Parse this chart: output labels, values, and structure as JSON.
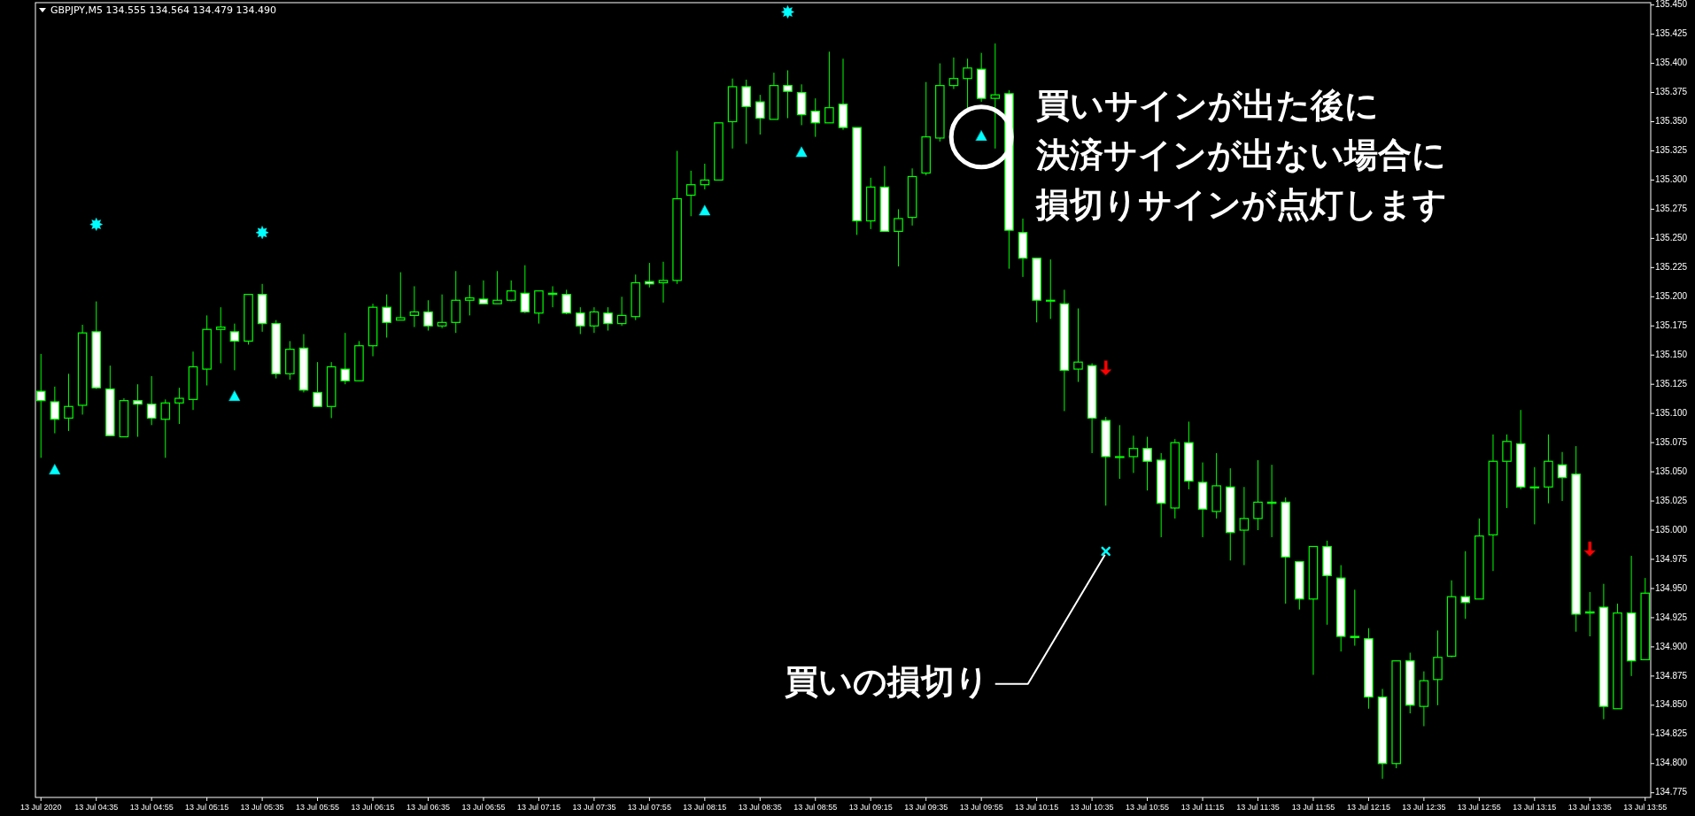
{
  "chart_data": {
    "type": "candlestick",
    "title": "GBPJPY,M5  134.555 134.564 134.479 134.490",
    "x": [
      "2020-07-13T04:15",
      "2020-07-13T04:20",
      "2020-07-13T04:25",
      "2020-07-13T04:30",
      "2020-07-13T04:35",
      "2020-07-13T04:40",
      "2020-07-13T04:45",
      "2020-07-13T04:50",
      "2020-07-13T04:55",
      "2020-07-13T05:00",
      "2020-07-13T05:05",
      "2020-07-13T05:10",
      "2020-07-13T05:15",
      "2020-07-13T05:20",
      "2020-07-13T05:25",
      "2020-07-13T05:30",
      "2020-07-13T05:35",
      "2020-07-13T05:40",
      "2020-07-13T05:45",
      "2020-07-13T05:50",
      "2020-07-13T05:55",
      "2020-07-13T06:00",
      "2020-07-13T06:05",
      "2020-07-13T06:10",
      "2020-07-13T06:15",
      "2020-07-13T06:20",
      "2020-07-13T06:25",
      "2020-07-13T06:30",
      "2020-07-13T06:35",
      "2020-07-13T06:40",
      "2020-07-13T06:45",
      "2020-07-13T06:50",
      "2020-07-13T06:55",
      "2020-07-13T07:00",
      "2020-07-13T07:05",
      "2020-07-13T07:10",
      "2020-07-13T07:15",
      "2020-07-13T07:20",
      "2020-07-13T07:25",
      "2020-07-13T07:30",
      "2020-07-13T07:35",
      "2020-07-13T07:40",
      "2020-07-13T07:45",
      "2020-07-13T07:50",
      "2020-07-13T07:55",
      "2020-07-13T08:00",
      "2020-07-13T08:05",
      "2020-07-13T08:10",
      "2020-07-13T08:15",
      "2020-07-13T08:20",
      "2020-07-13T08:25",
      "2020-07-13T08:30",
      "2020-07-13T08:35",
      "2020-07-13T08:40",
      "2020-07-13T08:45",
      "2020-07-13T08:50",
      "2020-07-13T08:55",
      "2020-07-13T09:00",
      "2020-07-13T09:05",
      "2020-07-13T09:10",
      "2020-07-13T09:15",
      "2020-07-13T09:20",
      "2020-07-13T09:25",
      "2020-07-13T09:30",
      "2020-07-13T09:35",
      "2020-07-13T09:40",
      "2020-07-13T09:45",
      "2020-07-13T09:50",
      "2020-07-13T09:55",
      "2020-07-13T10:00",
      "2020-07-13T10:05",
      "2020-07-13T10:10",
      "2020-07-13T10:15",
      "2020-07-13T10:20",
      "2020-07-13T10:25",
      "2020-07-13T10:30",
      "2020-07-13T10:35",
      "2020-07-13T10:40",
      "2020-07-13T10:45",
      "2020-07-13T10:50",
      "2020-07-13T10:55",
      "2020-07-13T11:00",
      "2020-07-13T11:05",
      "2020-07-13T11:10",
      "2020-07-13T11:15",
      "2020-07-13T11:20",
      "2020-07-13T11:25",
      "2020-07-13T11:30",
      "2020-07-13T11:35",
      "2020-07-13T11:40",
      "2020-07-13T11:45",
      "2020-07-13T11:50",
      "2020-07-13T11:55",
      "2020-07-13T12:00",
      "2020-07-13T12:05",
      "2020-07-13T12:10",
      "2020-07-13T12:15",
      "2020-07-13T12:20",
      "2020-07-13T12:25",
      "2020-07-13T12:30",
      "2020-07-13T12:35",
      "2020-07-13T12:40",
      "2020-07-13T12:45",
      "2020-07-13T12:50",
      "2020-07-13T12:55",
      "2020-07-13T13:00",
      "2020-07-13T13:05",
      "2020-07-13T13:10",
      "2020-07-13T13:15",
      "2020-07-13T13:20",
      "2020-07-13T13:25",
      "2020-07-13T13:30",
      "2020-07-13T13:35",
      "2020-07-13T13:40",
      "2020-07-13T13:45",
      "2020-07-13T13:50",
      "2020-07-13T13:55"
    ],
    "series": [
      {
        "type": "scatter",
        "color": "#00ffff",
        "marker": "triangle",
        "x": [
          "2020-07-13T04:20",
          "2020-07-13T05:25",
          "2020-07-13T08:15",
          "2020-07-13T08:50",
          "2020-07-13T09:55"
        ],
        "values": [
          135.051,
          135.114,
          135.273,
          135.323,
          135.337
        ]
      },
      {
        "type": "scatter",
        "color": "#00ffff",
        "marker": "star",
        "x": [
          "2020-07-13T04:35",
          "2020-07-13T05:35",
          "2020-07-13T08:45"
        ],
        "values": [
          135.262,
          135.255,
          135.444
        ]
      },
      {
        "type": "scatter",
        "color": "#00ffff",
        "marker": "cross",
        "x": [
          "2020-07-13T10:40"
        ],
        "values": [
          134.982
        ]
      },
      {
        "type": "scatter",
        "color": "#ff0000",
        "x": [
          "2020-07-13T10:40",
          "2020-07-13T13:35"
        ],
        "values": [
          135.139,
          134.984
        ]
      },
      {
        "color": "#00ff00",
        "ohlc": [
          [
            135.119,
            135.151,
            135.062,
            135.111
          ],
          [
            135.11,
            135.123,
            135.083,
            135.095
          ],
          [
            135.096,
            135.134,
            135.085,
            135.106
          ],
          [
            135.107,
            135.176,
            135.099,
            135.169
          ],
          [
            135.17,
            135.196,
            135.121,
            135.122
          ],
          [
            135.121,
            135.141,
            135.081,
            135.081
          ],
          [
            135.08,
            135.113,
            135.08,
            135.111
          ],
          [
            135.111,
            135.125,
            135.08,
            135.108
          ],
          [
            135.108,
            135.132,
            135.09,
            135.096
          ],
          [
            135.095,
            135.112,
            135.062,
            135.109
          ],
          [
            135.109,
            135.122,
            135.091,
            135.113
          ],
          [
            135.112,
            135.153,
            135.103,
            135.14
          ],
          [
            135.138,
            135.184,
            135.124,
            135.172
          ],
          [
            135.172,
            135.191,
            135.143,
            135.174
          ],
          [
            135.17,
            135.177,
            135.137,
            135.162
          ],
          [
            135.162,
            135.202,
            135.159,
            135.202
          ],
          [
            135.202,
            135.211,
            135.17,
            135.177
          ],
          [
            135.177,
            135.18,
            135.13,
            135.134
          ],
          [
            135.134,
            135.162,
            135.129,
            135.155
          ],
          [
            135.156,
            135.168,
            135.118,
            135.12
          ],
          [
            135.118,
            135.144,
            135.106,
            135.106
          ],
          [
            135.106,
            135.144,
            135.096,
            135.14
          ],
          [
            135.138,
            135.169,
            135.125,
            135.128
          ],
          [
            135.128,
            135.162,
            135.128,
            135.158
          ],
          [
            135.158,
            135.194,
            135.149,
            135.191
          ],
          [
            135.191,
            135.202,
            135.165,
            135.178
          ],
          [
            135.18,
            135.221,
            135.18,
            135.182
          ],
          [
            135.184,
            135.209,
            135.174,
            135.187
          ],
          [
            135.187,
            135.197,
            135.171,
            135.175
          ],
          [
            135.175,
            135.202,
            135.173,
            135.178
          ],
          [
            135.178,
            135.222,
            135.169,
            135.197
          ],
          [
            135.197,
            135.21,
            135.184,
            135.199
          ],
          [
            135.198,
            135.214,
            135.194,
            135.194
          ],
          [
            135.194,
            135.222,
            135.194,
            135.197
          ],
          [
            135.197,
            135.214,
            135.196,
            135.205
          ],
          [
            135.203,
            135.227,
            135.186,
            135.187
          ],
          [
            135.186,
            135.205,
            135.177,
            135.205
          ],
          [
            135.203,
            135.209,
            135.191,
            135.202
          ],
          [
            135.202,
            135.206,
            135.185,
            135.186
          ],
          [
            135.186,
            135.191,
            135.168,
            135.175
          ],
          [
            135.175,
            135.191,
            135.169,
            135.187
          ],
          [
            135.186,
            135.191,
            135.171,
            135.177
          ],
          [
            135.177,
            135.2,
            135.175,
            135.184
          ],
          [
            135.183,
            135.219,
            135.18,
            135.212
          ],
          [
            135.213,
            135.229,
            135.208,
            135.211
          ],
          [
            135.212,
            135.23,
            135.195,
            135.214
          ],
          [
            135.214,
            135.325,
            135.211,
            135.284
          ],
          [
            135.287,
            135.308,
            135.269,
            135.296
          ],
          [
            135.296,
            135.314,
            135.292,
            135.3
          ],
          [
            135.3,
            135.349,
            135.3,
            135.349
          ],
          [
            135.35,
            135.387,
            135.327,
            135.38
          ],
          [
            135.38,
            135.386,
            135.331,
            135.363
          ],
          [
            135.367,
            135.373,
            135.339,
            135.353
          ],
          [
            135.352,
            135.392,
            135.352,
            135.381
          ],
          [
            135.381,
            135.394,
            135.353,
            135.376
          ],
          [
            135.375,
            135.382,
            135.347,
            135.356
          ],
          [
            135.359,
            135.37,
            135.337,
            135.349
          ],
          [
            135.349,
            135.41,
            135.349,
            135.362
          ],
          [
            135.365,
            135.404,
            135.343,
            135.345
          ],
          [
            135.345,
            135.345,
            135.253,
            135.265
          ],
          [
            135.265,
            135.302,
            135.258,
            135.294
          ],
          [
            135.294,
            135.312,
            135.256,
            135.256
          ],
          [
            135.256,
            135.275,
            135.226,
            135.267
          ],
          [
            135.268,
            135.31,
            135.261,
            135.303
          ],
          [
            135.306,
            135.384,
            135.304,
            135.337
          ],
          [
            135.336,
            135.4,
            135.333,
            135.381
          ],
          [
            135.381,
            135.405,
            135.378,
            135.387
          ],
          [
            135.387,
            135.404,
            135.361,
            135.396
          ],
          [
            135.395,
            135.409,
            135.367,
            135.37
          ],
          [
            135.37,
            135.417,
            135.327,
            135.373
          ],
          [
            135.374,
            135.377,
            135.224,
            135.257
          ],
          [
            135.255,
            135.267,
            135.217,
            135.233
          ],
          [
            135.233,
            135.233,
            135.178,
            135.197
          ],
          [
            135.197,
            135.232,
            135.181,
            135.197
          ],
          [
            135.194,
            135.206,
            135.102,
            135.137
          ],
          [
            135.138,
            135.19,
            135.127,
            135.144
          ],
          [
            135.141,
            135.143,
            135.066,
            135.096
          ],
          [
            135.094,
            135.097,
            135.021,
            135.063
          ],
          [
            135.063,
            135.09,
            135.044,
            135.063
          ],
          [
            135.063,
            135.081,
            135.049,
            135.07
          ],
          [
            135.07,
            135.08,
            135.034,
            135.059
          ],
          [
            135.06,
            135.066,
            134.994,
            135.023
          ],
          [
            135.019,
            135.078,
            135.01,
            135.075
          ],
          [
            135.075,
            135.093,
            135.035,
            135.042
          ],
          [
            135.041,
            135.058,
            134.994,
            135.018
          ],
          [
            135.016,
            135.066,
            135.01,
            135.038
          ],
          [
            135.037,
            135.053,
            134.974,
            134.998
          ],
          [
            135.0,
            135.037,
            134.97,
            135.01
          ],
          [
            135.01,
            135.06,
            135.0,
            135.024
          ],
          [
            135.024,
            135.056,
            134.994,
            135.023
          ],
          [
            135.024,
            135.028,
            134.937,
            134.977
          ],
          [
            134.973,
            134.973,
            134.932,
            134.941
          ],
          [
            134.941,
            134.986,
            134.876,
            134.986
          ],
          [
            134.986,
            134.991,
            134.919,
            134.961
          ],
          [
            134.959,
            134.97,
            134.896,
            134.909
          ],
          [
            134.909,
            134.949,
            134.901,
            134.908
          ],
          [
            134.907,
            134.916,
            134.847,
            134.857
          ],
          [
            134.857,
            134.864,
            134.787,
            134.8
          ],
          [
            134.8,
            134.888,
            134.796,
            134.888
          ],
          [
            134.888,
            134.895,
            134.843,
            134.85
          ],
          [
            134.849,
            134.879,
            134.832,
            134.871
          ],
          [
            134.872,
            134.914,
            134.85,
            134.891
          ],
          [
            134.892,
            134.957,
            134.891,
            134.943
          ],
          [
            134.943,
            134.982,
            134.924,
            134.938
          ],
          [
            134.941,
            135.01,
            134.941,
            134.995
          ],
          [
            134.996,
            135.082,
            134.965,
            135.059
          ],
          [
            135.059,
            135.082,
            135.019,
            135.076
          ],
          [
            135.074,
            135.103,
            135.035,
            135.037
          ],
          [
            135.037,
            135.054,
            135.005,
            135.037
          ],
          [
            135.037,
            135.082,
            135.023,
            135.059
          ],
          [
            135.056,
            135.067,
            135.025,
            135.045
          ],
          [
            135.048,
            135.072,
            134.913,
            134.928
          ],
          [
            134.929,
            134.947,
            134.909,
            134.93
          ],
          [
            134.934,
            134.954,
            134.838,
            134.849
          ],
          [
            134.847,
            134.937,
            134.847,
            134.929
          ],
          [
            134.929,
            134.978,
            134.875,
            134.888
          ],
          [
            134.889,
            134.959,
            134.889,
            134.946
          ]
        ]
      }
    ],
    "xlim": [
      "2020-07-13T04:13",
      "2020-07-13T13:57"
    ],
    "xticks": [
      {
        "value": "2020-07-13T04:15",
        "label": "13 Jul 2020"
      },
      {
        "value": "2020-07-13T04:35",
        "label": "13 Jul 04:35"
      },
      {
        "value": "2020-07-13T04:55",
        "label": "13 Jul 04:55"
      },
      {
        "value": "2020-07-13T05:15",
        "label": "13 Jul 05:15"
      },
      {
        "value": "2020-07-13T05:35",
        "label": "13 Jul 05:35"
      },
      {
        "value": "2020-07-13T05:55",
        "label": "13 Jul 05:55"
      },
      {
        "value": "2020-07-13T06:15",
        "label": "13 Jul 06:15"
      },
      {
        "value": "2020-07-13T06:35",
        "label": "13 Jul 06:35"
      },
      {
        "value": "2020-07-13T06:55",
        "label": "13 Jul 06:55"
      },
      {
        "value": "2020-07-13T07:15",
        "label": "13 Jul 07:15"
      },
      {
        "value": "2020-07-13T07:35",
        "label": "13 Jul 07:35"
      },
      {
        "value": "2020-07-13T07:55",
        "label": "13 Jul 07:55"
      },
      {
        "value": "2020-07-13T08:15",
        "label": "13 Jul 08:15"
      },
      {
        "value": "2020-07-13T08:35",
        "label": "13 Jul 08:35"
      },
      {
        "value": "2020-07-13T08:55",
        "label": "13 Jul 08:55"
      },
      {
        "value": "2020-07-13T09:15",
        "label": "13 Jul 09:15"
      },
      {
        "value": "2020-07-13T09:35",
        "label": "13 Jul 09:35"
      },
      {
        "value": "2020-07-13T09:55",
        "label": "13 Jul 09:55"
      },
      {
        "value": "2020-07-13T10:15",
        "label": "13 Jul 10:15"
      },
      {
        "value": "2020-07-13T10:35",
        "label": "13 Jul 10:35"
      },
      {
        "value": "2020-07-13T10:55",
        "label": "13 Jul 10:55"
      },
      {
        "value": "2020-07-13T11:15",
        "label": "13 Jul 11:15"
      },
      {
        "value": "2020-07-13T11:35",
        "label": "13 Jul 11:35"
      },
      {
        "value": "2020-07-13T11:55",
        "label": "13 Jul 11:55"
      },
      {
        "value": "2020-07-13T12:15",
        "label": "13 Jul 12:15"
      },
      {
        "value": "2020-07-13T12:35",
        "label": "13 Jul 12:35"
      },
      {
        "value": "2020-07-13T12:55",
        "label": "13 Jul 12:55"
      },
      {
        "value": "2020-07-13T13:15",
        "label": "13 Jul 13:15"
      },
      {
        "value": "2020-07-13T13:35",
        "label": "13 Jul 13:35"
      },
      {
        "value": "2020-07-13T13:55",
        "label": "13 Jul 13:55"
      }
    ],
    "ylim": [
      134.771,
      135.452
    ],
    "yticks": [
      {
        "value": 134.775,
        "label": "134.775"
      },
      {
        "value": 134.8,
        "label": "134.800"
      },
      {
        "value": 134.825,
        "label": "134.825"
      },
      {
        "value": 134.85,
        "label": "134.850"
      },
      {
        "value": 134.875,
        "label": "134.875"
      },
      {
        "value": 134.9,
        "label": "134.900"
      },
      {
        "value": 134.925,
        "label": "134.925"
      },
      {
        "value": 134.95,
        "label": "134.950"
      },
      {
        "value": 134.975,
        "label": "134.975"
      },
      {
        "value": 135.0,
        "label": "135.000"
      },
      {
        "value": 135.025,
        "label": "135.025"
      },
      {
        "value": 135.05,
        "label": "135.050"
      },
      {
        "value": 135.075,
        "label": "135.075"
      },
      {
        "value": 135.1,
        "label": "135.100"
      },
      {
        "value": 135.125,
        "label": "135.125"
      },
      {
        "value": 135.15,
        "label": "135.150"
      },
      {
        "value": 135.175,
        "label": "135.175"
      },
      {
        "value": 135.2,
        "label": "135.200"
      },
      {
        "value": 135.225,
        "label": "135.225"
      },
      {
        "value": 135.25,
        "label": "135.250"
      },
      {
        "value": 135.275,
        "label": "135.275"
      },
      {
        "value": 135.3,
        "label": "135.300"
      },
      {
        "value": 135.325,
        "label": "135.325"
      },
      {
        "value": 135.35,
        "label": "135.350"
      },
      {
        "value": 135.375,
        "label": "135.375"
      },
      {
        "value": 135.4,
        "label": "135.400"
      },
      {
        "value": 135.425,
        "label": "135.425"
      },
      {
        "value": 135.45,
        "label": "135.450"
      }
    ],
    "annotations": [
      {
        "text": "買いサインが出た後に",
        "x": "2020-07-13T09:55",
        "y": 135.337
      },
      "決済サインが出ない場合に",
      "損切りサインが点灯します",
      {
        "text": "買いの損切り",
        "x": "2020-07-13T10:40",
        "y": 134.982
      }
    ]
  }
}
